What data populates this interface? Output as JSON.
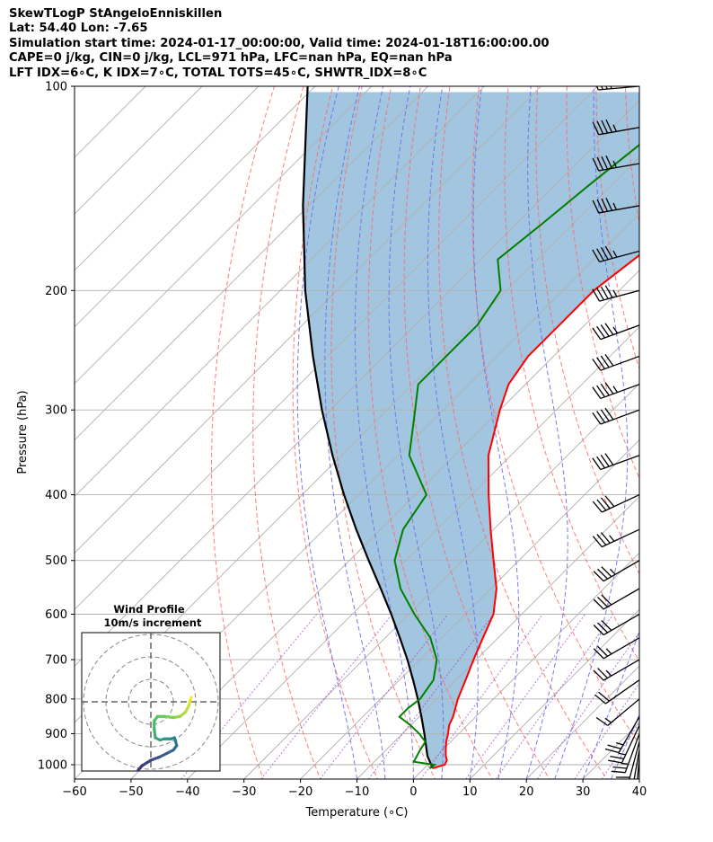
{
  "header": {
    "title": "SkewTLogP StAngeloEnniskillen",
    "location": "Lat: 54.40   Lon: -7.65",
    "times": "Simulation start time: 2024-01-17_00:00:00, Valid time: 2024-01-18T16:00:00.00",
    "params": "CAPE=0 j/kg, CIN=0 j/kg, LCL=971 hPa, LFC=nan hPa, EQ=nan hPa",
    "indices": "LFT IDX=6∘C, K IDX=7∘C, TOTAL TOTS=45∘C, SHWTR_IDX=8∘C"
  },
  "chart_data": {
    "type": "skew-t log-p",
    "xlabel": "Temperature (∘C)",
    "ylabel": "Pressure (hPa)",
    "xlim": [
      -60,
      40
    ],
    "ylim": [
      1050,
      100
    ],
    "y_scale": "log",
    "x_ticks": [
      "−60",
      "−50",
      "−40",
      "−30",
      "−20",
      "−10",
      "0",
      "10",
      "20",
      "30",
      "40"
    ],
    "y_ticks": [
      "100",
      "200",
      "300",
      "400",
      "500",
      "600",
      "700",
      "800",
      "900",
      "1000"
    ],
    "grid": true,
    "colors": {
      "temperature": "#ff0000",
      "dewpoint": "#008000",
      "parcel": "#000000",
      "shade": "#a2c6e0",
      "dry_adiabats": "#ff6666",
      "moist_adiabats": "#6b6bf0",
      "mixing_ratio": "#9a40c0",
      "isotherms": "#b0b0b0"
    },
    "temperature_profile": {
      "pressure": [
        1012,
        1000,
        985,
        970,
        950,
        925,
        900,
        875,
        850,
        800,
        750,
        700,
        650,
        600,
        550,
        500,
        450,
        400,
        350,
        300,
        275,
        250,
        225,
        200,
        175,
        150,
        125,
        100
      ],
      "temperature": [
        1.5,
        3.0,
        2.6,
        1.6,
        0.5,
        -0.8,
        -1.9,
        -3.2,
        -4.0,
        -6.3,
        -8.3,
        -10.5,
        -12.7,
        -15.0,
        -19.0,
        -24.5,
        -30.5,
        -37.0,
        -44.0,
        -50.0,
        -53.0,
        -54.5,
        -54.5,
        -54.5,
        -52.5,
        -50.5,
        -48.5,
        -47.5
      ]
    },
    "dewpoint_profile": {
      "pressure": [
        1012,
        1000,
        990,
        970,
        950,
        925,
        900,
        875,
        850,
        825,
        800,
        750,
        700,
        650,
        600,
        550,
        500,
        450,
        400,
        350,
        300,
        275,
        250,
        225,
        200,
        180,
        160,
        140,
        120,
        100
      ],
      "dewpoint": [
        1.0,
        1.2,
        -3.0,
        -3.5,
        -4.0,
        -4.5,
        -7.0,
        -10.0,
        -13.5,
        -13.5,
        -13.0,
        -14.0,
        -17.0,
        -22.0,
        -29.0,
        -36.0,
        -42.0,
        -46.0,
        -48.0,
        -58.0,
        -65.0,
        -69.0,
        -69.0,
        -69.0,
        -71.0,
        -77.0,
        -75.5,
        -74.0,
        -72.0,
        -70.0
      ]
    },
    "parcel_profile": {
      "pressure": [
        1012,
        971,
        950,
        900,
        850,
        800,
        750,
        700,
        650,
        600,
        550,
        500,
        450,
        400,
        350,
        300,
        250,
        200,
        150,
        100
      ],
      "temperature": [
        1.5,
        -1.6,
        -2.9,
        -6.1,
        -9.6,
        -13.4,
        -17.6,
        -22.2,
        -27.4,
        -33.1,
        -39.5,
        -46.6,
        -54.3,
        -62.6,
        -71.6,
        -81.5,
        -92.6,
        -105.6,
        -121.0,
        -141.3
      ]
    },
    "wind_barbs": [
      {
        "pressure": 1000,
        "speed_kt": 10,
        "direction": 180
      },
      {
        "pressure": 975,
        "speed_kt": 15,
        "direction": 185
      },
      {
        "pressure": 950,
        "speed_kt": 20,
        "direction": 190
      },
      {
        "pressure": 925,
        "speed_kt": 20,
        "direction": 195
      },
      {
        "pressure": 900,
        "speed_kt": 25,
        "direction": 200
      },
      {
        "pressure": 875,
        "speed_kt": 25,
        "direction": 205
      },
      {
        "pressure": 850,
        "speed_kt": 25,
        "direction": 210
      },
      {
        "pressure": 800,
        "speed_kt": 15,
        "direction": 230
      },
      {
        "pressure": 750,
        "speed_kt": 20,
        "direction": 235
      },
      {
        "pressure": 700,
        "speed_kt": 25,
        "direction": 240
      },
      {
        "pressure": 650,
        "speed_kt": 25,
        "direction": 240
      },
      {
        "pressure": 600,
        "speed_kt": 30,
        "direction": 240
      },
      {
        "pressure": 550,
        "speed_kt": 30,
        "direction": 240
      },
      {
        "pressure": 500,
        "speed_kt": 35,
        "direction": 240
      },
      {
        "pressure": 450,
        "speed_kt": 35,
        "direction": 245
      },
      {
        "pressure": 400,
        "speed_kt": 40,
        "direction": 245
      },
      {
        "pressure": 350,
        "speed_kt": 40,
        "direction": 250
      },
      {
        "pressure": 300,
        "speed_kt": 40,
        "direction": 250
      },
      {
        "pressure": 275,
        "speed_kt": 45,
        "direction": 250
      },
      {
        "pressure": 250,
        "speed_kt": 40,
        "direction": 250
      },
      {
        "pressure": 225,
        "speed_kt": 45,
        "direction": 250
      },
      {
        "pressure": 200,
        "speed_kt": 45,
        "direction": 255
      },
      {
        "pressure": 175,
        "speed_kt": 45,
        "direction": 255
      },
      {
        "pressure": 150,
        "speed_kt": 45,
        "direction": 260
      },
      {
        "pressure": 130,
        "speed_kt": 45,
        "direction": 260
      },
      {
        "pressure": 115,
        "speed_kt": 45,
        "direction": 260
      },
      {
        "pressure": 100,
        "speed_kt": 40,
        "direction": 265
      }
    ],
    "hodograph": {
      "title": "Wind Profile",
      "subtitle": "10m/s increment",
      "ring_step_ms": 10,
      "ring_count": 3,
      "points": [
        {
          "u": 18.0,
          "v": 2.0
        },
        {
          "u": 17.5,
          "v": 0.5
        },
        {
          "u": 17.0,
          "v": -1.5
        },
        {
          "u": 15.5,
          "v": -4.5
        },
        {
          "u": 13.0,
          "v": -6.5
        },
        {
          "u": 10.0,
          "v": -7.0
        },
        {
          "u": 6.0,
          "v": -6.5
        },
        {
          "u": 3.0,
          "v": -6.5
        },
        {
          "u": 1.5,
          "v": -8.5
        },
        {
          "u": 1.5,
          "v": -12.0
        },
        {
          "u": 2.0,
          "v": -16.0
        },
        {
          "u": 4.0,
          "v": -17.0
        },
        {
          "u": 6.0,
          "v": -16.5
        },
        {
          "u": 9.0,
          "v": -16.5
        },
        {
          "u": 10.5,
          "v": -16.0
        },
        {
          "u": 11.0,
          "v": -17.5
        },
        {
          "u": 11.5,
          "v": -19.5
        },
        {
          "u": 10.0,
          "v": -21.5
        },
        {
          "u": 7.0,
          "v": -23.0
        },
        {
          "u": 4.0,
          "v": -24.5
        },
        {
          "u": 0.0,
          "v": -26.0
        },
        {
          "u": -4.0,
          "v": -28.5
        },
        {
          "u": -6.5,
          "v": -31.5
        },
        {
          "u": -7.5,
          "v": -33.0
        },
        {
          "u": -7.5,
          "v": -35.0
        },
        {
          "u": -8.0,
          "v": -38.0
        },
        {
          "u": -8.0,
          "v": -40.0
        }
      ]
    }
  }
}
